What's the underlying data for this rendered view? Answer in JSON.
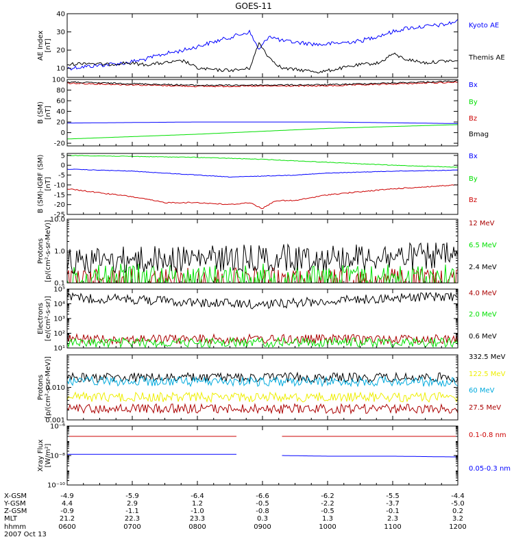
{
  "title": "GOES-11",
  "colors": {
    "black": "#000000",
    "blue": "#0000ff",
    "green": "#00e000",
    "red": "#cc0000",
    "darkred": "#aa0000",
    "cyan": "#00aadd",
    "yellow": "#eeee00"
  },
  "chart_data": [
    {
      "type": "line",
      "panel": "ae",
      "ylabel": "AE Index",
      "yunit": "[nT]",
      "ylim": [
        5,
        40
      ],
      "ylog": false,
      "yticks": [
        {
          "v": 10,
          "t": "10"
        },
        {
          "v": 20,
          "t": "20"
        },
        {
          "v": 30,
          "t": "30"
        },
        {
          "v": 40,
          "t": "40"
        }
      ],
      "series": [
        {
          "name": "Kyoto AE",
          "color": "#0000ff",
          "noise": 1.5,
          "x": [
            6,
            6.3,
            6.6,
            6.9,
            7.2,
            7.5,
            7.8,
            8.0,
            8.3,
            8.6,
            8.8,
            8.95,
            9.1,
            9.3,
            9.6,
            9.9,
            10.2,
            10.5,
            10.8,
            11.0,
            11.2,
            11.5,
            11.8,
            12
          ],
          "y": [
            10,
            11,
            12,
            13,
            15,
            18,
            20,
            22,
            25,
            28,
            30,
            20,
            28,
            25,
            24,
            23,
            24,
            25,
            28,
            30,
            32,
            33,
            34,
            36
          ]
        },
        {
          "name": "Themis AE",
          "color": "#000000",
          "noise": 1.2,
          "x": [
            6,
            6.3,
            6.6,
            6.9,
            7.2,
            7.5,
            7.8,
            8.0,
            8.3,
            8.6,
            8.8,
            8.95,
            9.1,
            9.3,
            9.6,
            9.9,
            10.2,
            10.5,
            10.8,
            11.0,
            11.2,
            11.5,
            11.8,
            12
          ],
          "y": [
            12,
            13,
            12,
            13,
            12,
            13,
            14,
            10,
            9,
            9,
            10,
            24,
            16,
            10,
            9,
            8,
            10,
            12,
            13,
            18,
            15,
            13,
            14,
            14
          ]
        }
      ]
    },
    {
      "type": "line",
      "panel": "b",
      "ylabel": "B (SM)",
      "yunit": "[nT]",
      "ylim": [
        -25,
        100
      ],
      "ylog": false,
      "yticks": [
        {
          "v": -20,
          "t": "-20"
        },
        {
          "v": 0,
          "t": "0"
        },
        {
          "v": 20,
          "t": "20"
        },
        {
          "v": 40,
          "t": "40"
        },
        {
          "v": 60,
          "t": "60"
        },
        {
          "v": 80,
          "t": "80"
        },
        {
          "v": 100,
          "t": "100"
        }
      ],
      "series": [
        {
          "name": "Bx",
          "color": "#0000ff",
          "noise": 0,
          "x": [
            6,
            8,
            10,
            12
          ],
          "y": [
            18,
            20,
            20,
            17
          ]
        },
        {
          "name": "By",
          "color": "#00e000",
          "noise": 0,
          "x": [
            6,
            8,
            10,
            12
          ],
          "y": [
            -12,
            -3,
            8,
            15
          ]
        },
        {
          "name": "Bz",
          "color": "#cc0000",
          "noise": 0.5,
          "x": [
            6,
            8,
            10,
            12
          ],
          "y": [
            93,
            87,
            88,
            95
          ]
        },
        {
          "name": "Bmag",
          "color": "#000000",
          "noise": 0.5,
          "x": [
            6,
            8,
            10,
            12
          ],
          "y": [
            95,
            89,
            90,
            97
          ]
        }
      ]
    },
    {
      "type": "line",
      "panel": "bigrf",
      "ylabel": "B (SM)-IGRF (SM)",
      "yunit": "[nT]",
      "ylim": [
        -25,
        6
      ],
      "ylog": false,
      "yticks": [
        {
          "v": -25,
          "t": "-25"
        },
        {
          "v": -20,
          "t": "-20"
        },
        {
          "v": -15,
          "t": "-15"
        },
        {
          "v": -10,
          "t": "-10"
        },
        {
          "v": -5,
          "t": "-5"
        },
        {
          "v": 0,
          "t": "0"
        },
        {
          "v": 5,
          "t": "5"
        }
      ],
      "series": [
        {
          "name": "Bx",
          "color": "#0000ff",
          "noise": 0.2,
          "x": [
            6,
            7,
            8,
            8.5,
            9.0,
            9.5,
            10,
            11,
            12
          ],
          "y": [
            -2,
            -3,
            -5,
            -6,
            -5.5,
            -5,
            -4,
            -3,
            -2.5
          ]
        },
        {
          "name": "By",
          "color": "#00e000",
          "noise": 0.2,
          "x": [
            6,
            8,
            9,
            10,
            11,
            12
          ],
          "y": [
            5,
            4,
            3,
            1.5,
            0,
            -1
          ]
        },
        {
          "name": "Bz",
          "color": "#cc0000",
          "noise": 0.4,
          "x": [
            6,
            7,
            7.5,
            8,
            8.5,
            8.8,
            9.0,
            9.2,
            9.5,
            10,
            11,
            12
          ],
          "y": [
            -12,
            -16,
            -19,
            -19,
            -20,
            -19,
            -22,
            -18,
            -18,
            -15,
            -12,
            -10
          ]
        }
      ]
    },
    {
      "type": "line",
      "panel": "protons",
      "ylabel": "Protons",
      "yunit": "[p/(cm²-s-sr-MeV)]",
      "ylim": [
        0.1,
        10
      ],
      "ylog": true,
      "yticks": [
        {
          "v": 0.1,
          "t": "0.1"
        },
        {
          "v": 1,
          "t": "1.0"
        },
        {
          "v": 10,
          "t": "10.0"
        }
      ],
      "series": [
        {
          "name": "12 MeV",
          "color": "#aa0000",
          "noise": 0,
          "x": [
            6,
            12
          ],
          "y": [
            0.11,
            0.11
          ]
        },
        {
          "name": "6.5 MeV",
          "color": "#00e000",
          "noise": 0,
          "x": [
            6,
            12
          ],
          "y": [
            0.15,
            0.15
          ]
        },
        {
          "name": "2.4 MeV",
          "color": "#000000",
          "noise": 0,
          "x": [
            6,
            12
          ],
          "y": [
            0.5,
            0.7
          ]
        }
      ]
    },
    {
      "type": "line",
      "panel": "electrons",
      "ylabel": "Electrons",
      "yunit": "[e/(cm²-s-sr)]",
      "ylim": [
        10,
        100000
      ],
      "ylog": true,
      "yticks": [
        {
          "v": 10,
          "t": "10¹"
        },
        {
          "v": 100,
          "t": "10²"
        },
        {
          "v": 1000,
          "t": "10³"
        },
        {
          "v": 10000,
          "t": "10⁴"
        },
        {
          "v": 100000,
          "t": "10⁵"
        }
      ],
      "series": [
        {
          "name": "4.0 MeV",
          "color": "#aa0000",
          "noise": 0,
          "x": [
            6,
            12
          ],
          "y": [
            40,
            40
          ]
        },
        {
          "name": "2.0 MeV",
          "color": "#00e000",
          "noise": 0,
          "x": [
            6,
            12
          ],
          "y": [
            22,
            25
          ]
        },
        {
          "name": "0.6 MeV",
          "color": "#000000",
          "noise": 0,
          "x": [
            6,
            7,
            8,
            9,
            10,
            11,
            12
          ],
          "y": [
            25000,
            20000,
            12000,
            9000,
            15000,
            25000,
            32000
          ]
        }
      ]
    },
    {
      "type": "line",
      "panel": "hiprotons",
      "ylabel": "Protons",
      "yunit": "[p/(cm²-s-sr-MeV)]",
      "ylim": [
        0.001,
        0.1
      ],
      "ylog": true,
      "yticks": [
        {
          "v": 0.001,
          "t": "0.001"
        },
        {
          "v": 0.01,
          "t": "0.010"
        },
        {
          "v": 0.1,
          "t": ""
        }
      ],
      "series": [
        {
          "name": "332.5 MeV",
          "color": "#000000",
          "noise": 0,
          "x": [
            6,
            12
          ],
          "y": [
            0.02,
            0.02
          ]
        },
        {
          "name": "122.5 MeV",
          "color": "#eeee00",
          "noise": 0,
          "x": [
            6,
            12
          ],
          "y": [
            0.005,
            0.005
          ]
        },
        {
          "name": "60 MeV",
          "color": "#00aadd",
          "noise": 0,
          "x": [
            6,
            12
          ],
          "y": [
            0.015,
            0.015
          ]
        },
        {
          "name": "27.5 MeV",
          "color": "#aa0000",
          "noise": 0,
          "x": [
            6,
            12
          ],
          "y": [
            0.0022,
            0.0022
          ]
        }
      ]
    },
    {
      "type": "line",
      "panel": "xray",
      "ylabel": "Xray Flux",
      "yunit": "[W/m²]",
      "ylim": [
        1e-10,
        1e-06
      ],
      "ylog": true,
      "yticks": [
        {
          "v": 1e-10,
          "t": "10⁻¹⁰"
        },
        {
          "v": 1e-08,
          "t": "10⁻⁸"
        },
        {
          "v": 1e-06,
          "t": "10⁻⁶"
        }
      ],
      "series": [
        {
          "name": "0.1-0.8 nm",
          "color": "#cc0000",
          "noise": 0,
          "segments": [
            {
              "x": [
                6,
                8.6
              ],
              "y": [
                2e-07,
                2e-07
              ]
            },
            {
              "x": [
                9.3,
                12
              ],
              "y": [
                2e-07,
                2e-07
              ]
            }
          ]
        },
        {
          "name": "0.05-0.3 nm",
          "color": "#0000ff",
          "noise": 0,
          "segments": [
            {
              "x": [
                6,
                8.6
              ],
              "y": [
                1.2e-08,
                1.2e-08
              ]
            },
            {
              "x": [
                9.3,
                10,
                11,
                12
              ],
              "y": [
                1e-08,
                9e-09,
                9e-09,
                8e-09
              ]
            }
          ]
        }
      ]
    }
  ],
  "x_axis": {
    "xlim": [
      6,
      12
    ],
    "tick_hours": [
      6,
      7,
      8,
      9,
      10,
      11,
      12
    ],
    "rows": [
      {
        "label": "X-GSM",
        "values": [
          "-4.9",
          "-5.9",
          "-6.4",
          "-6.6",
          "-6.2",
          "-5.5",
          "-4.4"
        ]
      },
      {
        "label": "Y-GSM",
        "values": [
          "4.4",
          "2.9",
          "1.2",
          "-0.5",
          "-2.2",
          "-3.7",
          "-5.0"
        ]
      },
      {
        "label": "Z-GSM",
        "values": [
          "-0.9",
          "-1.1",
          "-1.0",
          "-0.8",
          "-0.5",
          "-0.1",
          "0.2"
        ]
      },
      {
        "label": "MLT",
        "values": [
          "21.2",
          "22.3",
          "23.3",
          "0.3",
          "1.3",
          "2.3",
          "3.2"
        ]
      },
      {
        "label": "hhmm",
        "values": [
          "0600",
          "0700",
          "0800",
          "0900",
          "1000",
          "1100",
          "1200"
        ]
      }
    ],
    "date": "2007 Oct 13"
  }
}
